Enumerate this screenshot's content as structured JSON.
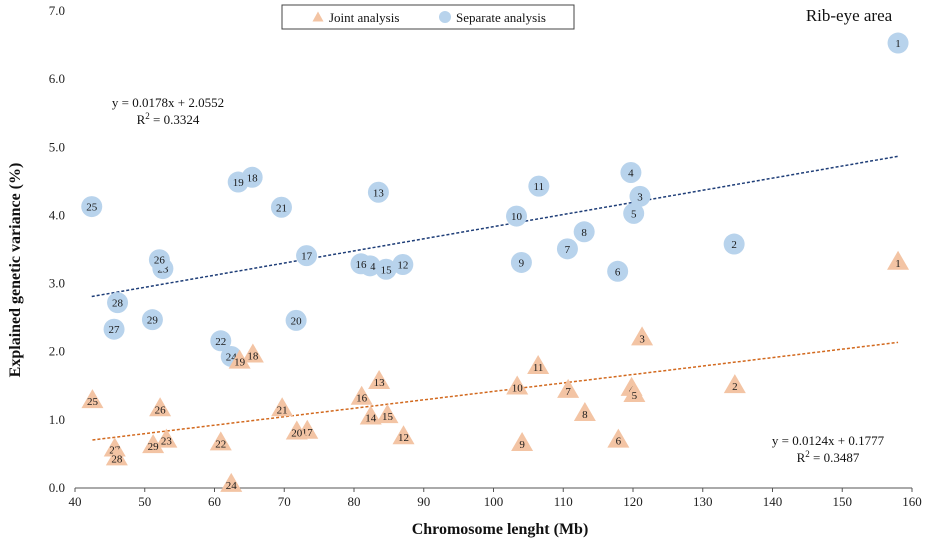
{
  "chart_data": {
    "type": "scatter",
    "title": "Rib-eye area",
    "xlabel": "Chromosome lenght (Mb)",
    "ylabel": "Explained genetic variance (%)",
    "xlim": [
      40,
      160
    ],
    "ylim": [
      0,
      7
    ],
    "xticks": [
      "40",
      "50",
      "60",
      "70",
      "80",
      "90",
      "100",
      "110",
      "120",
      "130",
      "140",
      "150",
      "160"
    ],
    "yticks": [
      "0.0",
      "1.0",
      "2.0",
      "3.0",
      "4.0",
      "5.0",
      "6.0",
      "7.0"
    ],
    "legend": {
      "position": "top-center",
      "entries": [
        "Joint analysis",
        "Separate analysis"
      ]
    },
    "series": [
      {
        "name": "Separate analysis",
        "marker": "circle",
        "color": "#b8d3ec",
        "trendline_color": "#1f3e78",
        "trendline": {
          "slope": 0.0178,
          "intercept": 2.0552,
          "equation": "y = 0.0178x + 2.0552",
          "r2_label": "R",
          "r2_sup": "2",
          "r2_value": " = 0.3324"
        },
        "points": [
          {
            "label": "1",
            "x": 158.0,
            "y": 6.53
          },
          {
            "label": "2",
            "x": 134.5,
            "y": 3.58
          },
          {
            "label": "3",
            "x": 121.0,
            "y": 4.28
          },
          {
            "label": "4",
            "x": 119.7,
            "y": 4.63
          },
          {
            "label": "5",
            "x": 120.1,
            "y": 4.03
          },
          {
            "label": "6",
            "x": 117.8,
            "y": 3.18
          },
          {
            "label": "7",
            "x": 110.6,
            "y": 3.51
          },
          {
            "label": "8",
            "x": 113.0,
            "y": 3.76
          },
          {
            "label": "9",
            "x": 104.0,
            "y": 3.31
          },
          {
            "label": "10",
            "x": 103.3,
            "y": 3.99
          },
          {
            "label": "11",
            "x": 106.5,
            "y": 4.43
          },
          {
            "label": "12",
            "x": 87.0,
            "y": 3.28
          },
          {
            "label": "13",
            "x": 83.5,
            "y": 4.34
          },
          {
            "label": "14",
            "x": 82.3,
            "y": 3.26
          },
          {
            "label": "15",
            "x": 84.6,
            "y": 3.21
          },
          {
            "label": "16",
            "x": 81.0,
            "y": 3.29
          },
          {
            "label": "17",
            "x": 73.2,
            "y": 3.41
          },
          {
            "label": "18",
            "x": 65.4,
            "y": 4.56
          },
          {
            "label": "19",
            "x": 63.4,
            "y": 4.49
          },
          {
            "label": "20",
            "x": 71.7,
            "y": 2.46
          },
          {
            "label": "21",
            "x": 69.6,
            "y": 4.12
          },
          {
            "label": "22",
            "x": 60.9,
            "y": 2.16
          },
          {
            "label": "23",
            "x": 52.6,
            "y": 3.22
          },
          {
            "label": "24",
            "x": 62.4,
            "y": 1.93
          },
          {
            "label": "25",
            "x": 42.4,
            "y": 4.13
          },
          {
            "label": "26",
            "x": 52.1,
            "y": 3.35
          },
          {
            "label": "27",
            "x": 45.6,
            "y": 2.33
          },
          {
            "label": "28",
            "x": 46.1,
            "y": 2.72
          },
          {
            "label": "29",
            "x": 51.1,
            "y": 2.47
          }
        ]
      },
      {
        "name": "Joint analysis",
        "marker": "triangle",
        "color": "#f3c4a4",
        "trendline_color": "#d2691e",
        "trendline": {
          "slope": 0.0124,
          "intercept": 0.1777,
          "equation": "y = 0.0124x + 0.1777",
          "r2_label": "R",
          "r2_sup": "2",
          "r2_value": " = 0.3487"
        },
        "points": [
          {
            "label": "1",
            "x": 158.0,
            "y": 3.32
          },
          {
            "label": "2",
            "x": 134.6,
            "y": 1.51
          },
          {
            "label": "3",
            "x": 121.3,
            "y": 2.21
          },
          {
            "label": "4",
            "x": 119.8,
            "y": 1.47
          },
          {
            "label": "5",
            "x": 120.2,
            "y": 1.38
          },
          {
            "label": "6",
            "x": 117.9,
            "y": 0.71
          },
          {
            "label": "7",
            "x": 110.7,
            "y": 1.44
          },
          {
            "label": "8",
            "x": 113.1,
            "y": 1.1
          },
          {
            "label": "9",
            "x": 104.1,
            "y": 0.66
          },
          {
            "label": "10",
            "x": 103.4,
            "y": 1.49
          },
          {
            "label": "11",
            "x": 106.4,
            "y": 1.79
          },
          {
            "label": "12",
            "x": 87.1,
            "y": 0.76
          },
          {
            "label": "13",
            "x": 83.6,
            "y": 1.57
          },
          {
            "label": "14",
            "x": 82.4,
            "y": 1.05
          },
          {
            "label": "15",
            "x": 84.8,
            "y": 1.07
          },
          {
            "label": "16",
            "x": 81.1,
            "y": 1.34
          },
          {
            "label": "17",
            "x": 73.3,
            "y": 0.84
          },
          {
            "label": "18",
            "x": 65.5,
            "y": 1.96
          },
          {
            "label": "19",
            "x": 63.6,
            "y": 1.87
          },
          {
            "label": "20",
            "x": 71.8,
            "y": 0.83
          },
          {
            "label": "21",
            "x": 69.7,
            "y": 1.17
          },
          {
            "label": "22",
            "x": 60.9,
            "y": 0.67
          },
          {
            "label": "23",
            "x": 53.1,
            "y": 0.71
          },
          {
            "label": "24",
            "x": 62.4,
            "y": 0.06
          },
          {
            "label": "25",
            "x": 42.5,
            "y": 1.29
          },
          {
            "label": "26",
            "x": 52.2,
            "y": 1.17
          },
          {
            "label": "27",
            "x": 45.7,
            "y": 0.58
          },
          {
            "label": "28",
            "x": 46.0,
            "y": 0.45
          },
          {
            "label": "29",
            "x": 51.2,
            "y": 0.63
          }
        ]
      }
    ]
  }
}
